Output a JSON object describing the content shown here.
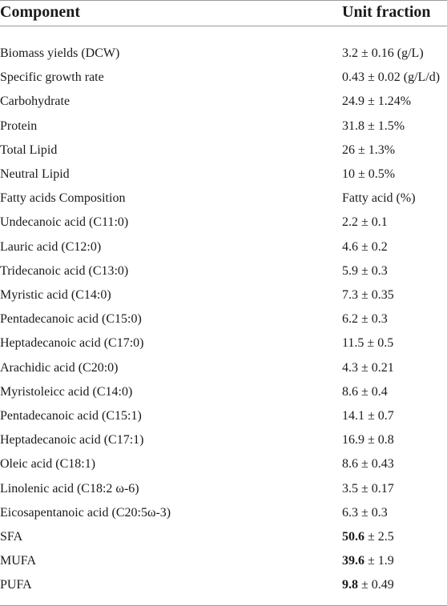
{
  "header": {
    "component": "Component",
    "unit_fraction": "Unit fraction"
  },
  "rows": [
    {
      "component": "Biomass yields (DCW)",
      "value": "3.2 ± 0.16 (g/L)"
    },
    {
      "component": "Specific growth rate",
      "value": "0.43 ± 0.02 (g/L/d)"
    },
    {
      "component": "Carbohydrate",
      "value": "24.9 ± 1.24%"
    },
    {
      "component": "Protein",
      "value": "31.8 ± 1.5%"
    },
    {
      "component": "Total Lipid",
      "value": "26 ± 1.3%"
    },
    {
      "component": "Neutral Lipid",
      "value": "10 ± 0.5%"
    },
    {
      "component": "Fatty acids Composition",
      "value": "Fatty acid (%)"
    },
    {
      "component": "Undecanoic acid (C11:0)",
      "value": "2.2 ± 0.1"
    },
    {
      "component": "Lauric acid (C12:0)",
      "value": "4.6 ± 0.2"
    },
    {
      "component": "Tridecanoic acid (C13:0)",
      "value": "5.9 ± 0.3"
    },
    {
      "component": "Myristic acid (C14:0)",
      "value": "7.3 ± 0.35"
    },
    {
      "component": "Pentadecanoic acid (C15:0)",
      "value": "6.2 ± 0.3"
    },
    {
      "component": "Heptadecanoic acid (C17:0)",
      "value": "11.5 ± 0.5"
    },
    {
      "component": "Arachidic acid (C20:0)",
      "value": "4.3 ± 0.21"
    },
    {
      "component": "Myristoleicc acid (C14:0)",
      "value": "8.6 ± 0.4"
    },
    {
      "component": "Pentadecanoic acid (C15:1)",
      "value": "14.1 ± 0.7"
    },
    {
      "component": "Heptadecanoic acid (C17:1)",
      "value": "16.9 ± 0.8"
    },
    {
      "component": "Oleic acid (C18:1)",
      "value": "8.6 ± 0.43"
    },
    {
      "component": "Linolenic acid (C18:2 ω-6)",
      "value": "3.5 ± 0.17"
    },
    {
      "component": "Eicosapentanoic acid (C20:5ω-3)",
      "value": "6.3 ± 0.3"
    },
    {
      "component": "SFA",
      "value_bold": "50.6",
      "value_rest": " ± 2.5"
    },
    {
      "component": "MUFA",
      "value_bold": "39.6",
      "value_rest": " ± 1.9"
    },
    {
      "component": "PUFA",
      "value_bold": "9.8",
      "value_rest": " ± 0.49"
    }
  ]
}
